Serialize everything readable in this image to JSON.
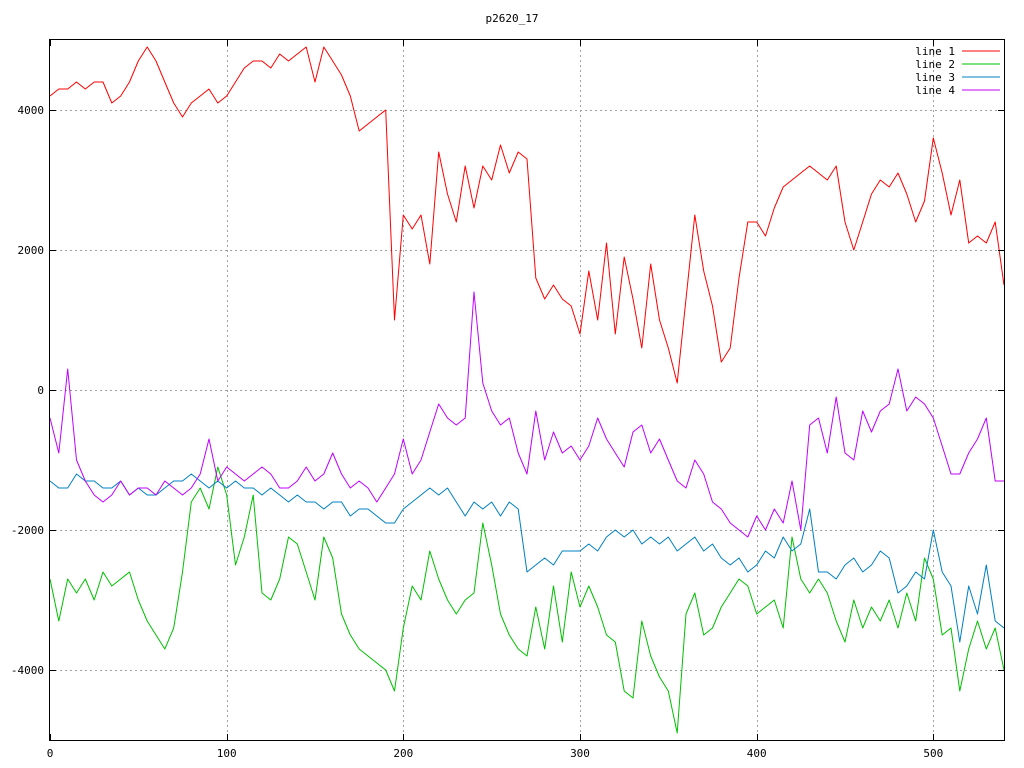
{
  "chart_data": {
    "type": "line",
    "title": "p2620_17",
    "xlabel": "",
    "ylabel": "",
    "xlim": [
      0,
      540
    ],
    "ylim": [
      -5000,
      5000
    ],
    "xticks": [
      0,
      100,
      200,
      300,
      400,
      500
    ],
    "yticks": [
      -4000,
      -2000,
      0,
      2000,
      4000
    ],
    "xtick_labels": [
      "0",
      "100",
      "200",
      "300",
      "400",
      "500"
    ],
    "ytick_labels": [
      "-4000",
      "-2000",
      "0",
      "2000",
      "4000"
    ],
    "grid": true,
    "legend_position": "top-right",
    "series": [
      {
        "name": "line 1",
        "color": "#ff0000",
        "x": [
          0,
          5,
          10,
          15,
          20,
          25,
          30,
          35,
          40,
          45,
          50,
          55,
          60,
          65,
          70,
          75,
          80,
          85,
          90,
          95,
          100,
          105,
          110,
          115,
          120,
          125,
          130,
          135,
          140,
          145,
          150,
          155,
          160,
          165,
          170,
          175,
          180,
          185,
          190,
          195,
          200,
          205,
          210,
          215,
          220,
          225,
          230,
          235,
          240,
          245,
          250,
          255,
          260,
          265,
          270,
          275,
          280,
          285,
          290,
          295,
          300,
          305,
          310,
          315,
          320,
          325,
          330,
          335,
          340,
          345,
          350,
          355,
          360,
          365,
          370,
          375,
          380,
          385,
          390,
          395,
          400,
          405,
          410,
          415,
          420,
          425,
          430,
          435,
          440,
          445,
          450,
          455,
          460,
          465,
          470,
          475,
          480,
          485,
          490,
          495,
          500,
          505,
          510,
          515,
          520,
          525,
          530,
          535,
          540
        ],
        "values": [
          4200,
          4300,
          4300,
          4400,
          4300,
          4400,
          4400,
          4100,
          4200,
          4400,
          4700,
          4900,
          4700,
          4400,
          4100,
          3900,
          4100,
          4200,
          4300,
          4100,
          4200,
          4400,
          4600,
          4700,
          4700,
          4600,
          4800,
          4700,
          4800,
          4900,
          4400,
          4900,
          4700,
          4500,
          4200,
          3700,
          3800,
          3900,
          4000,
          1000,
          2500,
          2300,
          2500,
          1800,
          3400,
          2800,
          2400,
          3200,
          2600,
          3200,
          3000,
          3500,
          3100,
          3400,
          3300,
          1600,
          1300,
          1500,
          1300,
          1200,
          800,
          1700,
          1000,
          2100,
          800,
          1900,
          1300,
          600,
          1800,
          1000,
          600,
          100,
          1300,
          2500,
          1700,
          1200,
          400,
          600,
          1600,
          2400,
          2400,
          2200,
          2600,
          2900,
          3000,
          3100,
          3200,
          3100,
          3000,
          3200,
          2400,
          2000,
          2400,
          2800,
          3000,
          2900,
          3100,
          2800,
          2400,
          2700,
          3600,
          3100,
          2500,
          3000,
          2100,
          2200,
          2100,
          2400,
          1500
        ]
      },
      {
        "name": "line 2",
        "color": "#00c000",
        "x": [
          0,
          5,
          10,
          15,
          20,
          25,
          30,
          35,
          40,
          45,
          50,
          55,
          60,
          65,
          70,
          75,
          80,
          85,
          90,
          95,
          100,
          105,
          110,
          115,
          120,
          125,
          130,
          135,
          140,
          145,
          150,
          155,
          160,
          165,
          170,
          175,
          180,
          185,
          190,
          195,
          200,
          205,
          210,
          215,
          220,
          225,
          230,
          235,
          240,
          245,
          250,
          255,
          260,
          265,
          270,
          275,
          280,
          285,
          290,
          295,
          300,
          305,
          310,
          315,
          320,
          325,
          330,
          335,
          340,
          345,
          350,
          355,
          360,
          365,
          370,
          375,
          380,
          385,
          390,
          395,
          400,
          405,
          410,
          415,
          420,
          425,
          430,
          435,
          440,
          445,
          450,
          455,
          460,
          465,
          470,
          475,
          480,
          485,
          490,
          495,
          500,
          505,
          510,
          515,
          520,
          525,
          530,
          535,
          540
        ],
        "values": [
          -2700,
          -3300,
          -2700,
          -2900,
          -2700,
          -3000,
          -2600,
          -2800,
          -2700,
          -2600,
          -3000,
          -3300,
          -3500,
          -3700,
          -3400,
          -2600,
          -1600,
          -1400,
          -1700,
          -1100,
          -1500,
          -2500,
          -2100,
          -1500,
          -2900,
          -3000,
          -2700,
          -2100,
          -2200,
          -2600,
          -3000,
          -2100,
          -2400,
          -3200,
          -3500,
          -3700,
          -3800,
          -3900,
          -4000,
          -4300,
          -3400,
          -2800,
          -3000,
          -2300,
          -2700,
          -3000,
          -3200,
          -3000,
          -2900,
          -1900,
          -2500,
          -3200,
          -3500,
          -3700,
          -3800,
          -3100,
          -3700,
          -2800,
          -3600,
          -2600,
          -3100,
          -2800,
          -3100,
          -3500,
          -3600,
          -4300,
          -4400,
          -3300,
          -3800,
          -4100,
          -4300,
          -4900,
          -3200,
          -2900,
          -3500,
          -3400,
          -3100,
          -2900,
          -2700,
          -2800,
          -3200,
          -3100,
          -3000,
          -3400,
          -2100,
          -2700,
          -2900,
          -2700,
          -2900,
          -3300,
          -3600,
          -3000,
          -3400,
          -3100,
          -3300,
          -3000,
          -3400,
          -2900,
          -3300,
          -2400,
          -2700,
          -3500,
          -3400,
          -4300,
          -3700,
          -3300,
          -3700,
          -3400,
          -4000
        ]
      },
      {
        "name": "line 3",
        "color": "#0080c0",
        "x": [
          0,
          5,
          10,
          15,
          20,
          25,
          30,
          35,
          40,
          45,
          50,
          55,
          60,
          65,
          70,
          75,
          80,
          85,
          90,
          95,
          100,
          105,
          110,
          115,
          120,
          125,
          130,
          135,
          140,
          145,
          150,
          155,
          160,
          165,
          170,
          175,
          180,
          185,
          190,
          195,
          200,
          205,
          210,
          215,
          220,
          225,
          230,
          235,
          240,
          245,
          250,
          255,
          260,
          265,
          270,
          275,
          280,
          285,
          290,
          295,
          300,
          305,
          310,
          315,
          320,
          325,
          330,
          335,
          340,
          345,
          350,
          355,
          360,
          365,
          370,
          375,
          380,
          385,
          390,
          395,
          400,
          405,
          410,
          415,
          420,
          425,
          430,
          435,
          440,
          445,
          450,
          455,
          460,
          465,
          470,
          475,
          480,
          485,
          490,
          495,
          500,
          505,
          510,
          515,
          520,
          525,
          530,
          535,
          540
        ],
        "values": [
          -1300,
          -1400,
          -1400,
          -1200,
          -1300,
          -1300,
          -1400,
          -1400,
          -1300,
          -1500,
          -1400,
          -1500,
          -1500,
          -1400,
          -1300,
          -1300,
          -1200,
          -1300,
          -1400,
          -1300,
          -1400,
          -1300,
          -1400,
          -1400,
          -1500,
          -1400,
          -1500,
          -1600,
          -1500,
          -1600,
          -1600,
          -1700,
          -1600,
          -1600,
          -1800,
          -1700,
          -1700,
          -1800,
          -1900,
          -1900,
          -1700,
          -1600,
          -1500,
          -1400,
          -1500,
          -1400,
          -1600,
          -1800,
          -1600,
          -1700,
          -1600,
          -1800,
          -1600,
          -1700,
          -2600,
          -2500,
          -2400,
          -2500,
          -2300,
          -2300,
          -2300,
          -2200,
          -2300,
          -2100,
          -2000,
          -2100,
          -2000,
          -2200,
          -2100,
          -2200,
          -2100,
          -2300,
          -2200,
          -2100,
          -2300,
          -2200,
          -2400,
          -2500,
          -2400,
          -2600,
          -2500,
          -2300,
          -2400,
          -2100,
          -2300,
          -2200,
          -1700,
          -2600,
          -2600,
          -2700,
          -2500,
          -2400,
          -2600,
          -2500,
          -2300,
          -2400,
          -2900,
          -2800,
          -2600,
          -2700,
          -2000,
          -2600,
          -2800,
          -3600,
          -2800,
          -3200,
          -2500,
          -3300,
          -3400
        ]
      },
      {
        "name": "line 4",
        "color": "#c000ff",
        "x": [
          0,
          5,
          10,
          15,
          20,
          25,
          30,
          35,
          40,
          45,
          50,
          55,
          60,
          65,
          70,
          75,
          80,
          85,
          90,
          95,
          100,
          105,
          110,
          115,
          120,
          125,
          130,
          135,
          140,
          145,
          150,
          155,
          160,
          165,
          170,
          175,
          180,
          185,
          190,
          195,
          200,
          205,
          210,
          215,
          220,
          225,
          230,
          235,
          240,
          245,
          250,
          255,
          260,
          265,
          270,
          275,
          280,
          285,
          290,
          295,
          300,
          305,
          310,
          315,
          320,
          325,
          330,
          335,
          340,
          345,
          350,
          355,
          360,
          365,
          370,
          375,
          380,
          385,
          390,
          395,
          400,
          405,
          410,
          415,
          420,
          425,
          430,
          435,
          440,
          445,
          450,
          455,
          460,
          465,
          470,
          475,
          480,
          485,
          490,
          495,
          500,
          505,
          510,
          515,
          520,
          525,
          530,
          535,
          540
        ],
        "values": [
          -400,
          -900,
          300,
          -1000,
          -1300,
          -1500,
          -1600,
          -1500,
          -1300,
          -1500,
          -1400,
          -1400,
          -1500,
          -1300,
          -1400,
          -1500,
          -1400,
          -1200,
          -700,
          -1300,
          -1100,
          -1200,
          -1300,
          -1200,
          -1100,
          -1200,
          -1400,
          -1400,
          -1300,
          -1100,
          -1300,
          -1200,
          -900,
          -1200,
          -1400,
          -1300,
          -1400,
          -1600,
          -1400,
          -1200,
          -700,
          -1200,
          -1000,
          -600,
          -200,
          -400,
          -500,
          -400,
          1400,
          100,
          -300,
          -500,
          -400,
          -900,
          -1200,
          -300,
          -1000,
          -600,
          -900,
          -800,
          -1000,
          -800,
          -400,
          -700,
          -900,
          -1100,
          -600,
          -500,
          -900,
          -700,
          -1000,
          -1300,
          -1400,
          -1000,
          -1200,
          -1600,
          -1700,
          -1900,
          -2000,
          -2100,
          -1800,
          -2000,
          -1700,
          -1900,
          -1300,
          -2000,
          -500,
          -400,
          -900,
          -100,
          -900,
          -1000,
          -300,
          -600,
          -300,
          -200,
          300,
          -300,
          -100,
          -200,
          -400,
          -800,
          -1200,
          -1200,
          -900,
          -700,
          -400,
          -1300,
          -1300
        ]
      }
    ]
  }
}
